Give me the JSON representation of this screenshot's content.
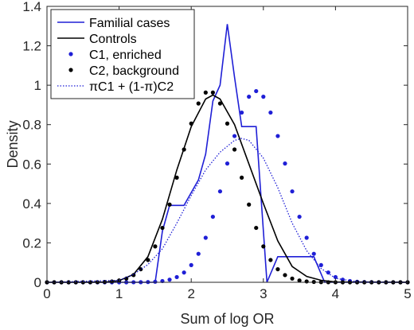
{
  "chart_data": {
    "type": "line",
    "xlabel": "Sum of log OR",
    "ylabel": "Density",
    "xlim": [
      0,
      5
    ],
    "ylim": [
      0,
      1.4
    ],
    "x_ticks": [
      "0",
      "1",
      "2",
      "3",
      "4",
      "5"
    ],
    "y_ticks": [
      "0",
      "0.2",
      "0.4",
      "0.6",
      "0.8",
      "1",
      "1.2",
      "1.4"
    ],
    "grid": false,
    "legend_position": "top-left",
    "series": [
      {
        "name": "Familial cases",
        "style": "solid",
        "color": "#1f1fd6",
        "points": [
          [
            0,
            0
          ],
          [
            1.5,
            0
          ],
          [
            1.6,
            0.26
          ],
          [
            1.7,
            0.39
          ],
          [
            1.9,
            0.39
          ],
          [
            2.1,
            0.52
          ],
          [
            2.2,
            0.65
          ],
          [
            2.3,
            0.92
          ],
          [
            2.4,
            1.0
          ],
          [
            2.5,
            1.31
          ],
          [
            2.6,
            1.04
          ],
          [
            2.7,
            0.79
          ],
          [
            2.9,
            0.79
          ],
          [
            3.05,
            0
          ],
          [
            3.2,
            0.13
          ],
          [
            3.7,
            0.13
          ],
          [
            3.85,
            0
          ],
          [
            5,
            0
          ]
        ]
      },
      {
        "name": "Controls",
        "style": "solid",
        "color": "#000000",
        "points": [
          [
            0,
            0
          ],
          [
            0.8,
            0.001
          ],
          [
            1.0,
            0.008
          ],
          [
            1.2,
            0.04
          ],
          [
            1.4,
            0.13
          ],
          [
            1.6,
            0.32
          ],
          [
            1.8,
            0.57
          ],
          [
            2.0,
            0.79
          ],
          [
            2.2,
            0.93
          ],
          [
            2.3,
            0.95
          ],
          [
            2.4,
            0.93
          ],
          [
            2.6,
            0.8
          ],
          [
            2.8,
            0.6
          ],
          [
            3.0,
            0.4
          ],
          [
            3.2,
            0.21
          ],
          [
            3.4,
            0.08
          ],
          [
            3.6,
            0.03
          ],
          [
            3.8,
            0.01
          ],
          [
            4.0,
            0.002
          ],
          [
            5,
            0
          ]
        ]
      },
      {
        "name": "C1, enriched",
        "style": "dots",
        "color": "#1f1fd6",
        "mean": 2.9,
        "sd": 0.41,
        "peak": 0.97,
        "x_start": 0,
        "x_end": 5,
        "x_step": 0.1
      },
      {
        "name": "C2, background",
        "style": "dots",
        "color": "#000000",
        "mean": 2.25,
        "sd": 0.41,
        "peak": 0.97,
        "x_start": 0,
        "x_end": 5,
        "x_step": 0.1
      },
      {
        "name": "πC1 + (1-π)C2",
        "style": "dotted",
        "color": "#1f1fd6",
        "points": [
          [
            0,
            0
          ],
          [
            1.0,
            0.01
          ],
          [
            1.2,
            0.04
          ],
          [
            1.4,
            0.09
          ],
          [
            1.6,
            0.17
          ],
          [
            1.8,
            0.3
          ],
          [
            2.0,
            0.44
          ],
          [
            2.2,
            0.57
          ],
          [
            2.4,
            0.66
          ],
          [
            2.6,
            0.72
          ],
          [
            2.7,
            0.73
          ],
          [
            2.8,
            0.72
          ],
          [
            3.0,
            0.63
          ],
          [
            3.2,
            0.48
          ],
          [
            3.4,
            0.3
          ],
          [
            3.6,
            0.16
          ],
          [
            3.8,
            0.07
          ],
          [
            4.0,
            0.02
          ],
          [
            4.3,
            0.003
          ],
          [
            5,
            0
          ]
        ]
      }
    ]
  }
}
